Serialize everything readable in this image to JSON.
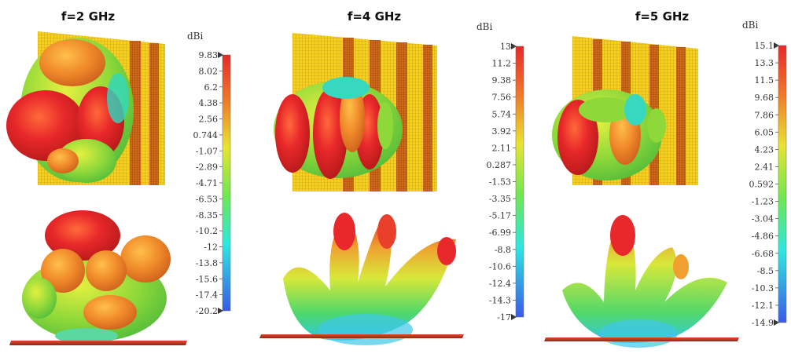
{
  "panels": [
    {
      "title": "f=2 GHz",
      "unit": "dBi",
      "ticks": [
        "9.83",
        "8.02",
        "6.2",
        "4.38",
        "2.56",
        "0.744",
        "-1.07",
        "-2.89",
        "-4.71",
        "-6.53",
        "-8.35",
        "-10.2",
        "-12",
        "-13.8",
        "-15.6",
        "-17.4",
        "-20.2"
      ]
    },
    {
      "title": "f=4 GHz",
      "unit": "dBi",
      "ticks": [
        "13",
        "11.2",
        "9.38",
        "7.56",
        "5.74",
        "3.92",
        "2.11",
        "0.287",
        "-1.53",
        "-3.35",
        "-5.17",
        "-6.99",
        "-8.8",
        "-10.6",
        "-12.4",
        "-14.3",
        "-17"
      ]
    },
    {
      "title": "f=5 GHz",
      "unit": "dBi",
      "ticks": [
        "15.1",
        "13.3",
        "11.5",
        "9.68",
        "7.86",
        "6.05",
        "4.23",
        "2.41",
        "0.592",
        "-1.23",
        "-3.04",
        "-4.86",
        "-6.68",
        "-8.5",
        "-10.3",
        "-12.1",
        "-14.9"
      ]
    }
  ],
  "colors": {
    "scale_top": "#e8282a",
    "scale_mid": "#e8e830",
    "scale_low": "#2ee8e0",
    "scale_bottom": "#3a5ae8",
    "reflector_yellow": "#f2d21a",
    "reflector_stripe": "#d07818"
  }
}
